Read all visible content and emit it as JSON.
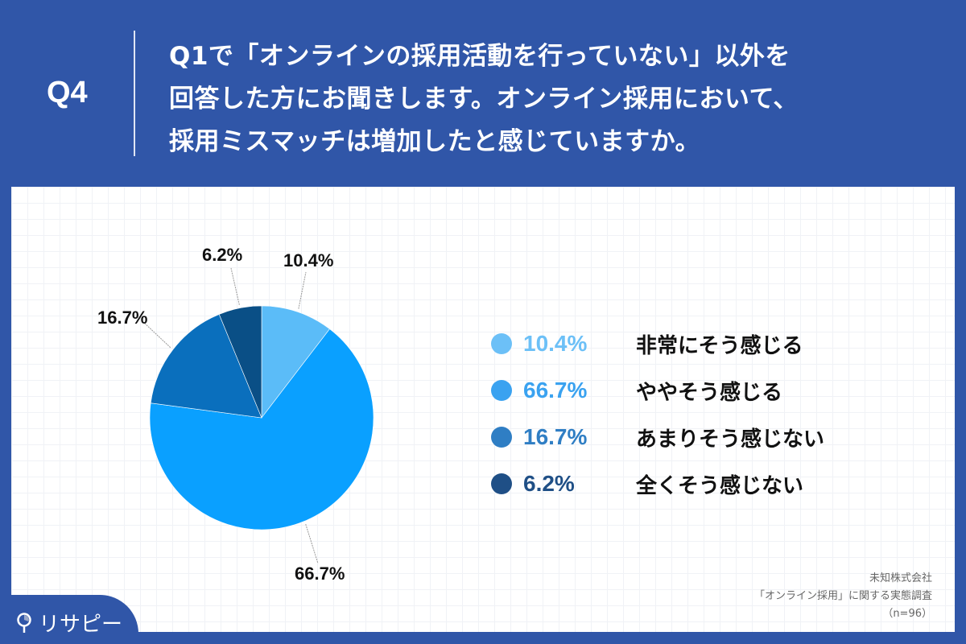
{
  "header": {
    "question_number": "Q4",
    "question_lines": [
      "Q1で「オンラインの採用活動を行っていない」以外を",
      "回答した方にお聞きします。オンライン採用において、",
      "採用ミスマッチは増加したと感じていますか。"
    ]
  },
  "colors": {
    "background": "#3056a8",
    "slice_1": "#5bbcf8",
    "slice_2": "#0aa0ff",
    "slice_3": "#0a6fbd",
    "slice_4": "#0a4f86",
    "legend_pct_1": "#6cc0f7",
    "legend_pct_2": "#3aa2f0",
    "legend_pct_3": "#2f7ec4",
    "legend_pct_4": "#1f4f86"
  },
  "chart_data": {
    "type": "pie",
    "title": "Q1で「オンラインの採用活動を行っていない」以外を回答した方にお聞きします。オンライン採用において、採用ミスマッチは増加したと感じていますか。",
    "categories": [
      "非常にそう感じる",
      "ややそう感じる",
      "あまりそう感じない",
      "全くそう感じない"
    ],
    "values": [
      10.4,
      66.7,
      16.7,
      6.2
    ],
    "labels": [
      "10.4%",
      "66.7%",
      "16.7%",
      "6.2%"
    ],
    "start_angle": "12 o'clock, clockwise",
    "legend_position": "right",
    "n": 96
  },
  "legend": [
    {
      "pct": "10.4%",
      "label": "非常にそう感じる"
    },
    {
      "pct": "66.7%",
      "label": "ややそう感じる"
    },
    {
      "pct": "16.7%",
      "label": "あまりそう感じない"
    },
    {
      "pct": "6.2%",
      "label": "全くそう感じない"
    }
  ],
  "source": {
    "company": "未知株式会社",
    "survey": "「オンライン採用」に関する実態調査",
    "sample": "（n=96）"
  },
  "logo": {
    "text": "リサピー"
  }
}
